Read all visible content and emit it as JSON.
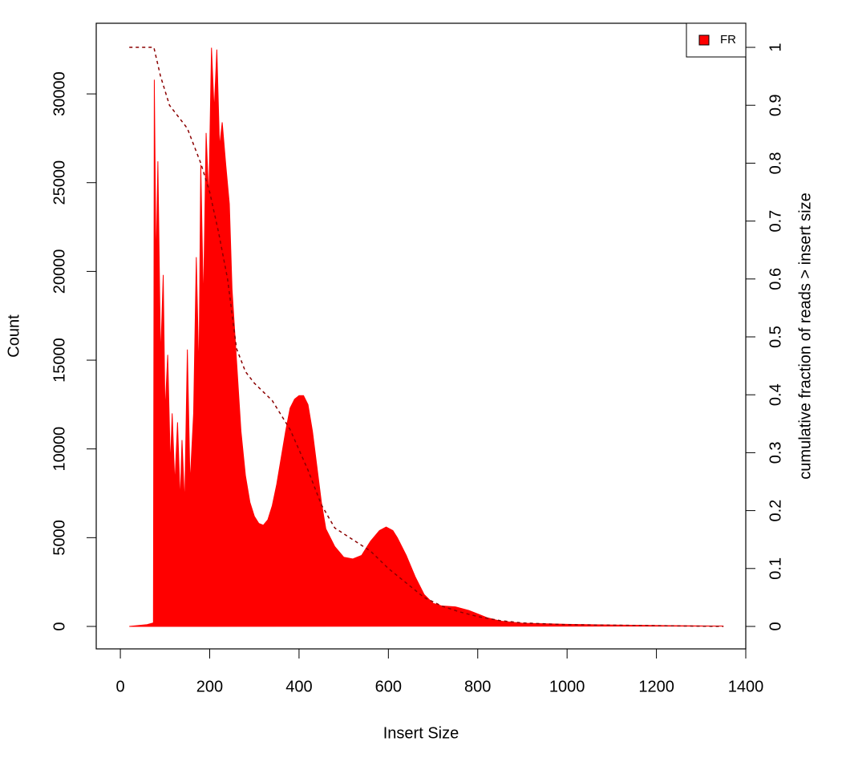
{
  "chart_data": {
    "type": "area",
    "x_label": "Insert Size",
    "y_label": "Count",
    "y2_label": "cumulative fraction of reads > insert size",
    "xlim": [
      -54,
      1400
    ],
    "xticks": [
      0,
      200,
      400,
      600,
      800,
      1000,
      1200,
      1400
    ],
    "ylim": [
      -1265,
      33980
    ],
    "yticks": [
      0,
      5000,
      10000,
      15000,
      20000,
      25000,
      30000
    ],
    "y2lim": [
      -0.0388,
      1.0416
    ],
    "y2ticks": [
      0,
      0.1,
      0.2,
      0.3,
      0.4,
      0.5,
      0.6,
      0.7,
      0.8,
      0.9,
      1
    ],
    "legend": "top-right",
    "series": [
      {
        "name": "FR",
        "color": "#ff0000",
        "x": [
          20,
          40,
          60,
          74,
          76,
          80,
          84,
          90,
          96,
          100,
          106,
          112,
          116,
          122,
          128,
          134,
          138,
          144,
          150,
          156,
          164,
          170,
          176,
          180,
          186,
          192,
          198,
          204,
          210,
          216,
          222,
          228,
          236,
          244,
          250,
          260,
          270,
          280,
          290,
          300,
          310,
          320,
          330,
          340,
          350,
          360,
          370,
          380,
          390,
          400,
          410,
          420,
          430,
          440,
          450,
          460,
          480,
          500,
          520,
          540,
          560,
          580,
          595,
          610,
          620,
          640,
          660,
          680,
          700,
          720,
          750,
          780,
          800,
          820,
          850,
          900,
          1000,
          1100,
          1200,
          1300,
          1350
        ],
        "values": [
          0,
          50,
          100,
          200,
          30800,
          20000,
          26200,
          15000,
          19800,
          12000,
          15300,
          9000,
          12000,
          8000,
          11500,
          7000,
          10500,
          6800,
          15600,
          8000,
          12000,
          20800,
          14000,
          26000,
          18000,
          27800,
          24000,
          32600,
          29000,
          32500,
          27000,
          28400,
          26000,
          23800,
          19000,
          15000,
          11000,
          8500,
          7000,
          6200,
          5800,
          5700,
          6000,
          6800,
          8000,
          9500,
          11000,
          12300,
          12800,
          13000,
          13000,
          12500,
          11000,
          9000,
          7000,
          5500,
          4500,
          3900,
          3800,
          4000,
          4800,
          5400,
          5600,
          5400,
          5000,
          4000,
          2800,
          1800,
          1300,
          1150,
          1100,
          900,
          700,
          500,
          300,
          180,
          120,
          80,
          50,
          30,
          20
        ]
      },
      {
        "axis": "y2",
        "color": "#8b0000",
        "dashed": true,
        "x": [
          20,
          75,
          90,
          110,
          150,
          180,
          200,
          220,
          240,
          260,
          280,
          300,
          340,
          380,
          420,
          450,
          480,
          520,
          560,
          600,
          640,
          680,
          720,
          760,
          800,
          850,
          900,
          1000,
          1350
        ],
        "values": [
          1,
          1,
          0.95,
          0.9,
          0.86,
          0.8,
          0.75,
          0.68,
          0.6,
          0.48,
          0.44,
          0.42,
          0.39,
          0.34,
          0.27,
          0.21,
          0.17,
          0.15,
          0.13,
          0.1,
          0.075,
          0.05,
          0.035,
          0.025,
          0.017,
          0.01,
          0.006,
          0.003,
          0
        ]
      }
    ]
  }
}
